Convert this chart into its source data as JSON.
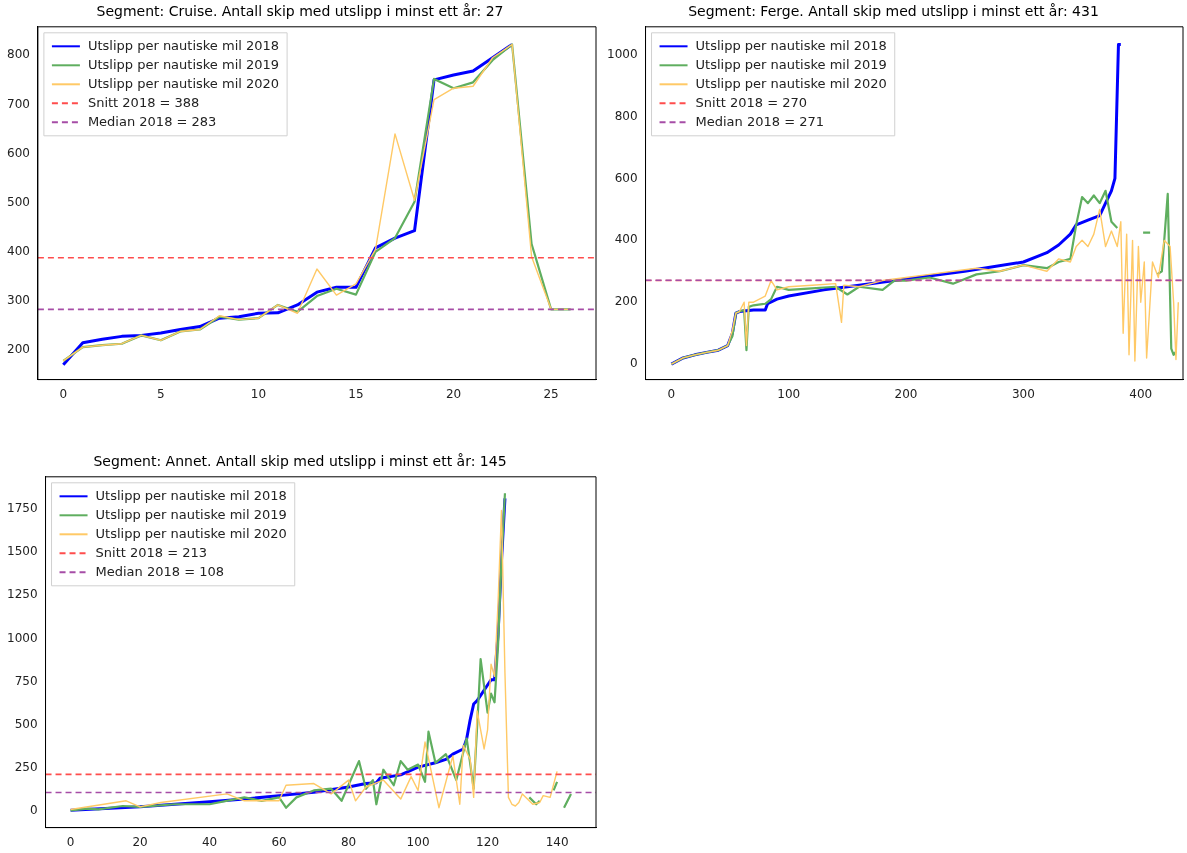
{
  "chart_data": [
    {
      "type": "line",
      "title": "Segment: Cruise. Antall skip med utslipp i minst ett år: 27",
      "legend": "top left",
      "grid": false,
      "xlim": [
        -1.3,
        27.3
      ],
      "ylim": [
        140,
        858
      ],
      "xticks": [
        0,
        5,
        10,
        15,
        20,
        25
      ],
      "yticks": [
        200,
        300,
        400,
        500,
        600,
        700,
        800
      ],
      "series": [
        {
          "name": "Utslipp per nautiske mil 2018",
          "color": "#0000ff",
          "x": [
            0,
            1,
            2,
            3,
            4,
            5,
            6,
            7,
            8,
            9,
            10,
            11,
            12,
            13,
            14,
            15,
            16,
            17,
            18,
            19,
            20,
            21,
            22,
            23
          ],
          "values": [
            170,
            215,
            222,
            228,
            230,
            235,
            242,
            248,
            265,
            268,
            275,
            276,
            292,
            318,
            328,
            328,
            408,
            428,
            443,
            750,
            760,
            768,
            795,
            822
          ]
        },
        {
          "name": "Utslipp per nautiske mil 2019",
          "color": "#5fae5f",
          "x": [
            0,
            1,
            2,
            3,
            4,
            5,
            6,
            7,
            8,
            9,
            10,
            11,
            12,
            13,
            14,
            15,
            16,
            17,
            18,
            19,
            20,
            21,
            22,
            23,
            24,
            25,
            26
          ],
          "values": [
            178,
            206,
            210,
            213,
            230,
            220,
            238,
            242,
            268,
            262,
            265,
            292,
            278,
            310,
            325,
            313,
            400,
            428,
            502,
            752,
            733,
            745,
            790,
            822,
            416,
            283,
            283
          ]
        },
        {
          "name": "Utslipp per nautiske mil 2020",
          "color": "#ffc966",
          "x": [
            0,
            1,
            2,
            3,
            4,
            5,
            6,
            7,
            8,
            9,
            10,
            11,
            12,
            13,
            14,
            15,
            16,
            17,
            18,
            19,
            20,
            21,
            22,
            23,
            24,
            25,
            26
          ],
          "values": [
            178,
            206,
            210,
            213,
            230,
            220,
            238,
            242,
            270,
            262,
            265,
            292,
            275,
            365,
            312,
            335,
            405,
            640,
            505,
            710,
            733,
            737,
            795,
            822,
            390,
            283,
            283
          ]
        }
      ],
      "ref_lines": [
        {
          "axis": "y",
          "value": 388,
          "label": "Snitt 2018 = 388",
          "color": "#ff4d4d",
          "line_style": "dashed"
        },
        {
          "axis": "y",
          "value": 283,
          "label": "Median 2018 = 283",
          "color": "#a64da6",
          "line_style": "dashed"
        }
      ]
    },
    {
      "type": "line",
      "title": "Segment: Ferge. Antall skip med utslipp i minst ett år: 431",
      "legend": "top left",
      "grid": false,
      "xlim": [
        -22,
        436
      ],
      "ylim": [
        -50,
        1090
      ],
      "xticks": [
        0,
        100,
        200,
        300,
        400
      ],
      "yticks": [
        0,
        200,
        400,
        600,
        800,
        1000
      ],
      "series": [
        {
          "name": "Utslipp per nautiske mil 2018",
          "color": "#0000ff",
          "x": [
            0,
            10,
            20,
            30,
            40,
            48,
            52,
            55,
            58,
            70,
            80,
            82,
            90,
            100,
            130,
            160,
            200,
            250,
            300,
            320,
            330,
            340,
            345,
            355,
            365,
            370,
            375,
            378,
            381,
            383
          ],
          "values": [
            0,
            20,
            30,
            38,
            45,
            60,
            100,
            165,
            170,
            175,
            175,
            195,
            210,
            220,
            240,
            255,
            275,
            300,
            330,
            360,
            385,
            420,
            450,
            465,
            480,
            520,
            560,
            600,
            1033,
            1033
          ]
        },
        {
          "name": "Utslipp per nautiske mil 2019",
          "color": "#5fae5f",
          "x": [
            0,
            10,
            20,
            30,
            40,
            48,
            52,
            55,
            58,
            62,
            64,
            66,
            70,
            80,
            85,
            90,
            100,
            120,
            140,
            150,
            160,
            180,
            190,
            200,
            220,
            240,
            260,
            280,
            300,
            320,
            330,
            340,
            345,
            350,
            355,
            360,
            365,
            370,
            375,
            380,
            385,
            390,
            395,
            400,
            402,
            408,
            410,
            414,
            418,
            423,
            426,
            428,
            430
          ],
          "values": [
            0,
            20,
            30,
            38,
            45,
            60,
            90,
            165,
            170,
            175,
            45,
            185,
            190,
            195,
            210,
            250,
            240,
            245,
            250,
            225,
            250,
            240,
            270,
            270,
            280,
            260,
            290,
            300,
            320,
            310,
            330,
            340,
            450,
            540,
            520,
            545,
            520,
            560,
            460,
            440,
            null,
            null,
            null,
            null,
            425,
            425,
            null,
            290,
            300,
            550,
            50,
            30,
            40
          ]
        },
        {
          "name": "Utslipp per nautiske mil 2020",
          "color": "#ffc966",
          "x": [
            0,
            10,
            20,
            30,
            40,
            48,
            52,
            55,
            58,
            62,
            64,
            66,
            70,
            80,
            85,
            90,
            100,
            120,
            140,
            145,
            147,
            160,
            180,
            200,
            220,
            240,
            260,
            280,
            300,
            320,
            330,
            340,
            345,
            350,
            355,
            360,
            365,
            370,
            375,
            380,
            383,
            385,
            388,
            390,
            393,
            395,
            398,
            400,
            403,
            405,
            410,
            415,
            420,
            425,
            428,
            430,
            432
          ],
          "values": [
            0,
            20,
            30,
            38,
            45,
            60,
            110,
            165,
            170,
            200,
            60,
            200,
            200,
            220,
            270,
            240,
            250,
            255,
            260,
            135,
            255,
            250,
            270,
            280,
            290,
            300,
            310,
            300,
            320,
            300,
            340,
            330,
            380,
            400,
            380,
            420,
            500,
            380,
            430,
            380,
            460,
            100,
            420,
            30,
            400,
            10,
            380,
            200,
            330,
            20,
            330,
            280,
            400,
            380,
            200,
            15,
            200
          ]
        }
      ],
      "ref_lines": [
        {
          "axis": "y",
          "value": 270,
          "label": "Snitt 2018 = 270",
          "color": "#ff4d4d",
          "line_style": "dashed"
        },
        {
          "axis": "y",
          "value": 271,
          "label": "Median 2018 = 271",
          "color": "#a64da6",
          "line_style": "dashed"
        }
      ]
    },
    {
      "type": "line",
      "title": "Segment: Annet. Antall skip med utslipp i minst ett år: 145",
      "legend": "top left",
      "grid": false,
      "xlim": [
        -7.2,
        151.2
      ],
      "ylim": [
        -95,
        1935
      ],
      "xticks": [
        0,
        20,
        40,
        60,
        80,
        100,
        120,
        140
      ],
      "yticks": [
        0,
        250,
        500,
        750,
        1000,
        1250,
        1500,
        1750
      ],
      "series": [
        {
          "name": "Utslipp per nautiske mil 2018",
          "color": "#0000ff",
          "x": [
            0,
            10,
            20,
            30,
            40,
            50,
            60,
            70,
            80,
            85,
            88,
            89,
            95,
            100,
            105,
            108,
            110,
            113,
            114,
            115,
            116,
            117,
            120,
            121,
            122,
            123,
            124,
            125
          ],
          "values": [
            5,
            15,
            25,
            40,
            55,
            70,
            90,
            110,
            140,
            160,
            165,
            190,
            210,
            255,
            280,
            300,
            330,
            360,
            420,
            530,
            620,
            640,
            730,
            760,
            760,
            1020,
            1450,
            1810
          ]
        },
        {
          "name": "Utslipp per nautiske mil 2019",
          "color": "#5fae5f",
          "x": [
            0,
            5,
            8,
            15,
            20,
            30,
            40,
            50,
            55,
            60,
            62,
            65,
            70,
            75,
            78,
            83,
            85,
            87,
            88,
            90,
            93,
            95,
            97,
            100,
            102,
            103,
            105,
            108,
            111,
            114,
            116,
            117,
            118,
            120,
            121,
            122,
            123,
            124,
            125,
            128,
            132,
            134,
            135,
            137,
            139,
            140,
            141,
            142,
            144
          ],
          "values": [
            5,
            15,
            10,
            30,
            25,
            40,
            40,
            80,
            60,
            80,
            20,
            80,
            120,
            130,
            60,
            290,
            130,
            180,
            40,
            240,
            150,
            290,
            240,
            270,
            170,
            460,
            280,
            330,
            180,
            420,
            130,
            490,
            880,
            570,
            680,
            630,
            950,
            1450,
            1840,
            null,
            80,
            40,
            60,
            null,
            120,
            170,
            null,
            20,
            100
          ]
        },
        {
          "name": "Utslipp per nautiske mil 2020",
          "color": "#ffc966",
          "x": [
            0,
            16,
            20,
            26,
            45,
            50,
            60,
            62,
            70,
            75,
            80,
            82,
            85,
            90,
            95,
            98,
            100,
            102,
            106,
            110,
            112,
            113,
            115,
            116,
            117,
            119,
            120,
            121,
            122,
            123,
            124,
            125,
            126,
            127,
            128,
            129,
            130,
            133,
            135,
            136,
            138,
            140
          ],
          "values": [
            10,
            60,
            25,
            50,
            100,
            60,
            60,
            150,
            160,
            100,
            180,
            60,
            140,
            180,
            70,
            200,
            120,
            400,
            20,
            320,
            40,
            380,
            300,
            80,
            580,
            360,
            470,
            850,
            780,
            1200,
            1740,
            800,
            80,
            40,
            30,
            50,
            100,
            40,
            50,
            90,
            80,
            230
          ]
        }
      ],
      "ref_lines": [
        {
          "axis": "y",
          "value": 213,
          "label": "Snitt 2018 = 213",
          "color": "#ff4d4d",
          "line_style": "dashed"
        },
        {
          "axis": "y",
          "value": 108,
          "label": "Median 2018 = 108",
          "color": "#a64da6",
          "line_style": "dashed"
        }
      ]
    }
  ]
}
